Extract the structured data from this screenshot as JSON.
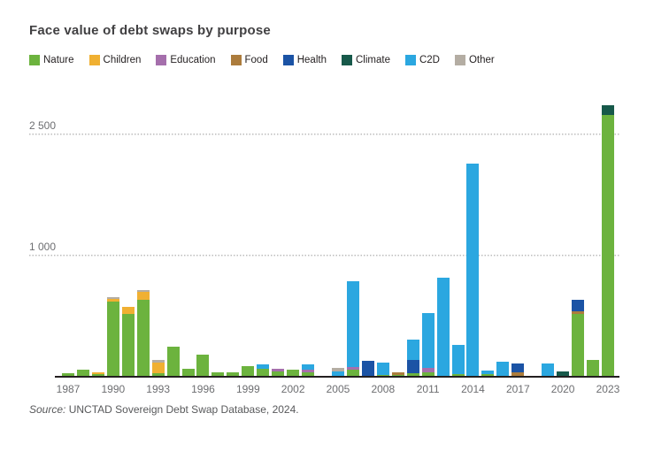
{
  "title": "Face value of debt swaps by purpose",
  "source": {
    "prefix": "Source:",
    "text": " UNCTAD Sovereign Debt Swap Database, 2024."
  },
  "legend": [
    {
      "key": "nature",
      "label": "Nature",
      "color": "#6CB33E"
    },
    {
      "key": "children",
      "label": "Children",
      "color": "#F0B032"
    },
    {
      "key": "education",
      "label": "Education",
      "color": "#A56FAC"
    },
    {
      "key": "food",
      "label": "Food",
      "color": "#AC7C3C"
    },
    {
      "key": "health",
      "label": "Health",
      "color": "#1B53A5"
    },
    {
      "key": "climate",
      "label": "Climate",
      "color": "#17594A"
    },
    {
      "key": "c2d",
      "label": "C2D",
      "color": "#2BA7E0"
    },
    {
      "key": "other",
      "label": "Other",
      "color": "#B4ADA3"
    }
  ],
  "y_axis": {
    "gridlines": [
      {
        "value": 1000,
        "label": "1 000"
      },
      {
        "value": 2500,
        "label": "2 500"
      }
    ],
    "scale_note": "non-linear: the 0-1000 span and the 1000-2500 span occupy equal pixel heights"
  },
  "x_axis": {
    "tick_years": [
      1987,
      1990,
      1993,
      1996,
      1999,
      2002,
      2005,
      2008,
      2011,
      2014,
      2017,
      2020,
      2023
    ]
  },
  "chart_data": {
    "type": "bar",
    "stacked": true,
    "title": "Face value of debt swaps by purpose",
    "legend_position": "top",
    "grid": "dotted horizontal gridlines at 1000 and 2500",
    "ylim": [
      0,
      3000
    ],
    "categories": [
      1987,
      1988,
      1989,
      1990,
      1991,
      1992,
      1993,
      1994,
      1995,
      1996,
      1997,
      1998,
      1999,
      2000,
      2001,
      2002,
      2003,
      2004,
      2005,
      2006,
      2007,
      2008,
      2009,
      2010,
      2011,
      2012,
      2013,
      2014,
      2015,
      2016,
      2017,
      2018,
      2019,
      2020,
      2021,
      2022,
      2023
    ],
    "series": [
      {
        "name": "Nature",
        "color": "#6CB33E",
        "values": [
          30,
          55,
          25,
          620,
          520,
          630,
          30,
          250,
          65,
          185,
          35,
          35,
          90,
          65,
          45,
          60,
          35,
          0,
          0,
          55,
          0,
          15,
          15,
          30,
          35,
          0,
          25,
          0,
          25,
          0,
          0,
          0,
          0,
          0,
          520,
          140,
          2740
        ]
      },
      {
        "name": "Children",
        "color": "#F0B032",
        "values": [
          0,
          0,
          10,
          20,
          55,
          65,
          90,
          0,
          0,
          0,
          0,
          0,
          0,
          0,
          0,
          0,
          0,
          0,
          0,
          0,
          0,
          0,
          0,
          0,
          0,
          0,
          0,
          0,
          0,
          0,
          0,
          0,
          0,
          0,
          0,
          0,
          0
        ]
      },
      {
        "name": "Education",
        "color": "#A56FAC",
        "values": [
          0,
          0,
          0,
          0,
          0,
          0,
          0,
          0,
          0,
          0,
          0,
          0,
          0,
          0,
          20,
          0,
          20,
          0,
          0,
          25,
          0,
          0,
          0,
          0,
          35,
          0,
          0,
          0,
          0,
          0,
          0,
          0,
          0,
          0,
          0,
          0,
          0
        ]
      },
      {
        "name": "Food",
        "color": "#AC7C3C",
        "values": [
          0,
          0,
          0,
          0,
          0,
          0,
          0,
          0,
          0,
          0,
          0,
          0,
          0,
          0,
          0,
          0,
          0,
          0,
          0,
          0,
          0,
          0,
          25,
          0,
          0,
          0,
          0,
          0,
          0,
          0,
          40,
          0,
          0,
          0,
          15,
          0,
          0
        ]
      },
      {
        "name": "Health",
        "color": "#1B53A5",
        "values": [
          0,
          0,
          0,
          0,
          0,
          0,
          0,
          0,
          0,
          0,
          0,
          0,
          0,
          0,
          0,
          0,
          0,
          0,
          0,
          0,
          130,
          0,
          0,
          105,
          0,
          0,
          0,
          0,
          0,
          0,
          70,
          0,
          0,
          0,
          100,
          0,
          0
        ]
      },
      {
        "name": "Climate",
        "color": "#17594A",
        "values": [
          0,
          0,
          0,
          0,
          0,
          0,
          0,
          0,
          0,
          0,
          0,
          0,
          0,
          0,
          0,
          0,
          0,
          0,
          0,
          0,
          0,
          0,
          0,
          0,
          0,
          0,
          0,
          0,
          0,
          0,
          0,
          0,
          0,
          45,
          0,
          0,
          120
        ]
      },
      {
        "name": "C2D",
        "color": "#2BA7E0",
        "values": [
          0,
          0,
          0,
          0,
          0,
          0,
          0,
          0,
          0,
          0,
          0,
          0,
          0,
          40,
          0,
          0,
          45,
          0,
          45,
          705,
          0,
          105,
          0,
          170,
          455,
          815,
          240,
          2130,
          25,
          125,
          0,
          0,
          110,
          0,
          0,
          0,
          0
        ]
      },
      {
        "name": "Other",
        "color": "#B4ADA3",
        "values": [
          0,
          0,
          0,
          15,
          0,
          20,
          15,
          0,
          0,
          0,
          0,
          0,
          0,
          0,
          0,
          0,
          0,
          0,
          30,
          0,
          0,
          0,
          0,
          0,
          0,
          0,
          0,
          0,
          0,
          0,
          0,
          0,
          0,
          0,
          0,
          0,
          0
        ]
      }
    ]
  }
}
